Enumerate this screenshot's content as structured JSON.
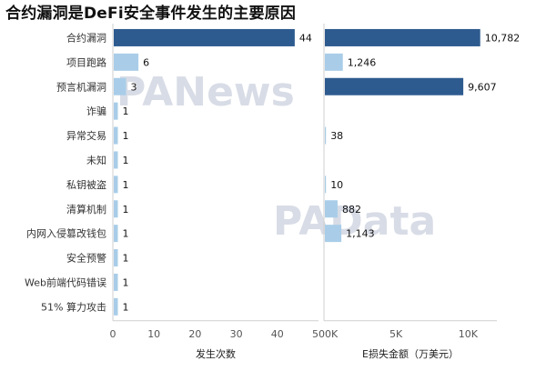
{
  "title": "合约漏洞是DeFi安全事件发生的主要原因",
  "watermarks": [
    "PANews",
    "PAData"
  ],
  "colors": {
    "dark": "#2e5b8f",
    "light": "#a9cde8",
    "axis": "#cfcfcf",
    "grid": "#e6e6e6"
  },
  "chart_data": [
    {
      "type": "bar",
      "orientation": "horizontal",
      "categories": [
        "合约漏洞",
        "项目跑路",
        "预言机漏洞",
        "诈骗",
        "异常交易",
        "未知",
        "私钥被盗",
        "清算机制",
        "内网入侵篡改钱包",
        "安全预警",
        "Web前端代码错误",
        "51% 算力攻击"
      ],
      "values": [
        44,
        6,
        3,
        1,
        1,
        1,
        1,
        1,
        1,
        1,
        1,
        1
      ],
      "value_labels": [
        "44",
        "6",
        "3",
        "1",
        "1",
        "1",
        "1",
        "1",
        "1",
        "1",
        "1",
        "1"
      ],
      "xlabel": "发生次数",
      "xlim": [
        0,
        50
      ],
      "ticks": [
        0,
        10,
        20,
        30,
        40,
        50
      ],
      "tick_labels": [
        "0",
        "10",
        "20",
        "30",
        "40",
        "50"
      ]
    },
    {
      "type": "bar",
      "orientation": "horizontal",
      "categories": [
        "合约漏洞",
        "项目跑路",
        "预言机漏洞",
        "诈骗",
        "异常交易",
        "未知",
        "私钥被盗",
        "清算机制",
        "内网入侵篡改钱包",
        "安全预警",
        "Web前端代码错误",
        "51% 算力攻击"
      ],
      "values": [
        10782,
        1246,
        9607,
        null,
        38,
        null,
        10,
        882,
        1143,
        null,
        null,
        null
      ],
      "value_labels": [
        "10,782",
        "1,246",
        "9,607",
        "",
        "38",
        "",
        "10",
        "882",
        "1,143",
        "",
        "",
        ""
      ],
      "xlabel": "E损失金额（万美元）",
      "xlim": [
        0,
        12000
      ],
      "ticks": [
        0,
        5000,
        10000
      ],
      "tick_labels": [
        "0K",
        "5K",
        "10K"
      ]
    }
  ]
}
